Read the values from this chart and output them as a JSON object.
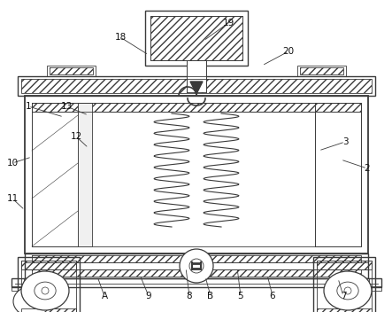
{
  "bg_color": "#ffffff",
  "line_color": "#3a3a3a",
  "fig_width": 4.43,
  "fig_height": 3.52,
  "label_fs": 7.5,
  "lw_main": 1.0,
  "lw_thin": 0.6,
  "lw_hatch": 0.4
}
